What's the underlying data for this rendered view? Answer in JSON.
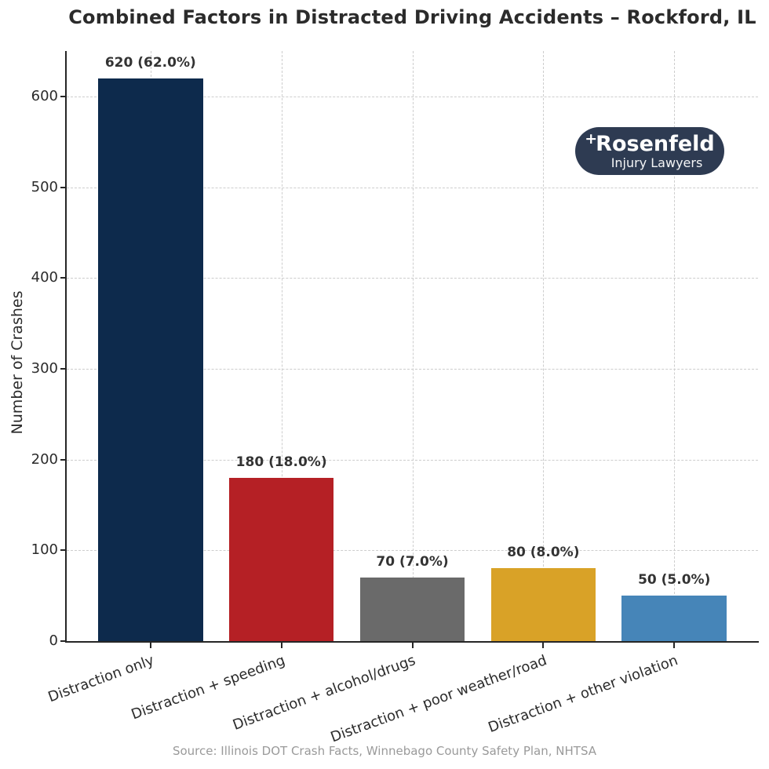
{
  "chart_data": {
    "type": "bar",
    "title": "Combined Factors in Distracted Driving Accidents – Rockford, IL",
    "ylabel": "Number of Crashes",
    "xlabel": "",
    "categories": [
      "Distraction only",
      "Distraction + speeding",
      "Distraction + alcohol/drugs",
      "Distraction + poor weather/road",
      "Distraction + other violation"
    ],
    "values": [
      620,
      180,
      70,
      80,
      50
    ],
    "percent_labels": [
      "620 (62.0%)",
      "180 (18.0%)",
      "70 (7.0%)",
      "80 (8.0%)",
      "50 (5.0%)"
    ],
    "bar_colors": [
      "#0d2a4c",
      "#b52025",
      "#6a6a6a",
      "#d9a227",
      "#4685b8"
    ],
    "ylim": [
      0,
      650
    ],
    "yticks": [
      0,
      100,
      200,
      300,
      400,
      500,
      600
    ],
    "grid": true,
    "grid_style": "dashed",
    "legend_position": "none",
    "source": "Source: Illinois DOT Crash Facts, Winnebago County Safety Plan, NHTSA"
  },
  "logo": {
    "plus": "+",
    "brand": "Rosenfeld",
    "tagline": "Injury Lawyers",
    "badge_color": "#2e3b52"
  },
  "colors": {
    "grid": "#cdcdcd",
    "spine": "#262626",
    "tick_label": "#2b2b2b",
    "value_label": "#333333",
    "title": "#2b2b2b",
    "source": "#9a9a9a",
    "background": "#ffffff"
  }
}
